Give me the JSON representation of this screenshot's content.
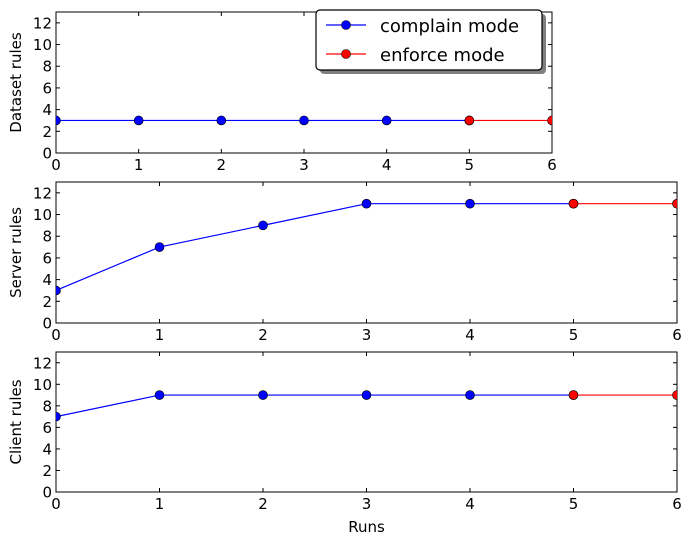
{
  "chart_data": [
    {
      "type": "line",
      "ylabel": "Dataset rules",
      "xlabel": "",
      "xlim": [
        0,
        6
      ],
      "ylim": [
        0,
        13
      ],
      "xticks": [
        0,
        1,
        2,
        3,
        4,
        5,
        6
      ],
      "yticks": [
        0,
        2,
        4,
        6,
        8,
        10,
        12
      ],
      "series": [
        {
          "name": "complain mode",
          "color": "#0000ff",
          "x": [
            0,
            1,
            2,
            3,
            4,
            5
          ],
          "y": [
            3,
            3,
            3,
            3,
            3,
            3
          ]
        },
        {
          "name": "enforce mode",
          "color": "#ff0000",
          "x": [
            5,
            6
          ],
          "y": [
            3,
            3
          ]
        }
      ],
      "legend": "top-right"
    },
    {
      "type": "line",
      "ylabel": "Server rules",
      "xlabel": "",
      "xlim": [
        0,
        6
      ],
      "ylim": [
        0,
        13
      ],
      "xticks": [
        0,
        1,
        2,
        3,
        4,
        5,
        6
      ],
      "yticks": [
        0,
        2,
        4,
        6,
        8,
        10,
        12
      ],
      "series": [
        {
          "name": "complain mode",
          "color": "#0000ff",
          "x": [
            0,
            1,
            2,
            3,
            4,
            5
          ],
          "y": [
            3,
            7,
            9,
            11,
            11,
            11
          ]
        },
        {
          "name": "enforce mode",
          "color": "#ff0000",
          "x": [
            5,
            6
          ],
          "y": [
            11,
            11
          ]
        }
      ]
    },
    {
      "type": "line",
      "ylabel": "Client rules",
      "xlabel": "Runs",
      "xlim": [
        0,
        6
      ],
      "ylim": [
        0,
        13
      ],
      "xticks": [
        0,
        1,
        2,
        3,
        4,
        5,
        6
      ],
      "yticks": [
        0,
        2,
        4,
        6,
        8,
        10,
        12
      ],
      "series": [
        {
          "name": "complain mode",
          "color": "#0000ff",
          "x": [
            0,
            1,
            2,
            3,
            4,
            5
          ],
          "y": [
            7,
            9,
            9,
            9,
            9,
            9
          ]
        },
        {
          "name": "enforce mode",
          "color": "#ff0000",
          "x": [
            5,
            6
          ],
          "y": [
            9,
            9
          ]
        }
      ]
    }
  ],
  "legend": {
    "items": [
      {
        "label": "complain mode",
        "color": "#0000ff"
      },
      {
        "label": "enforce mode",
        "color": "#ff0000"
      }
    ]
  }
}
